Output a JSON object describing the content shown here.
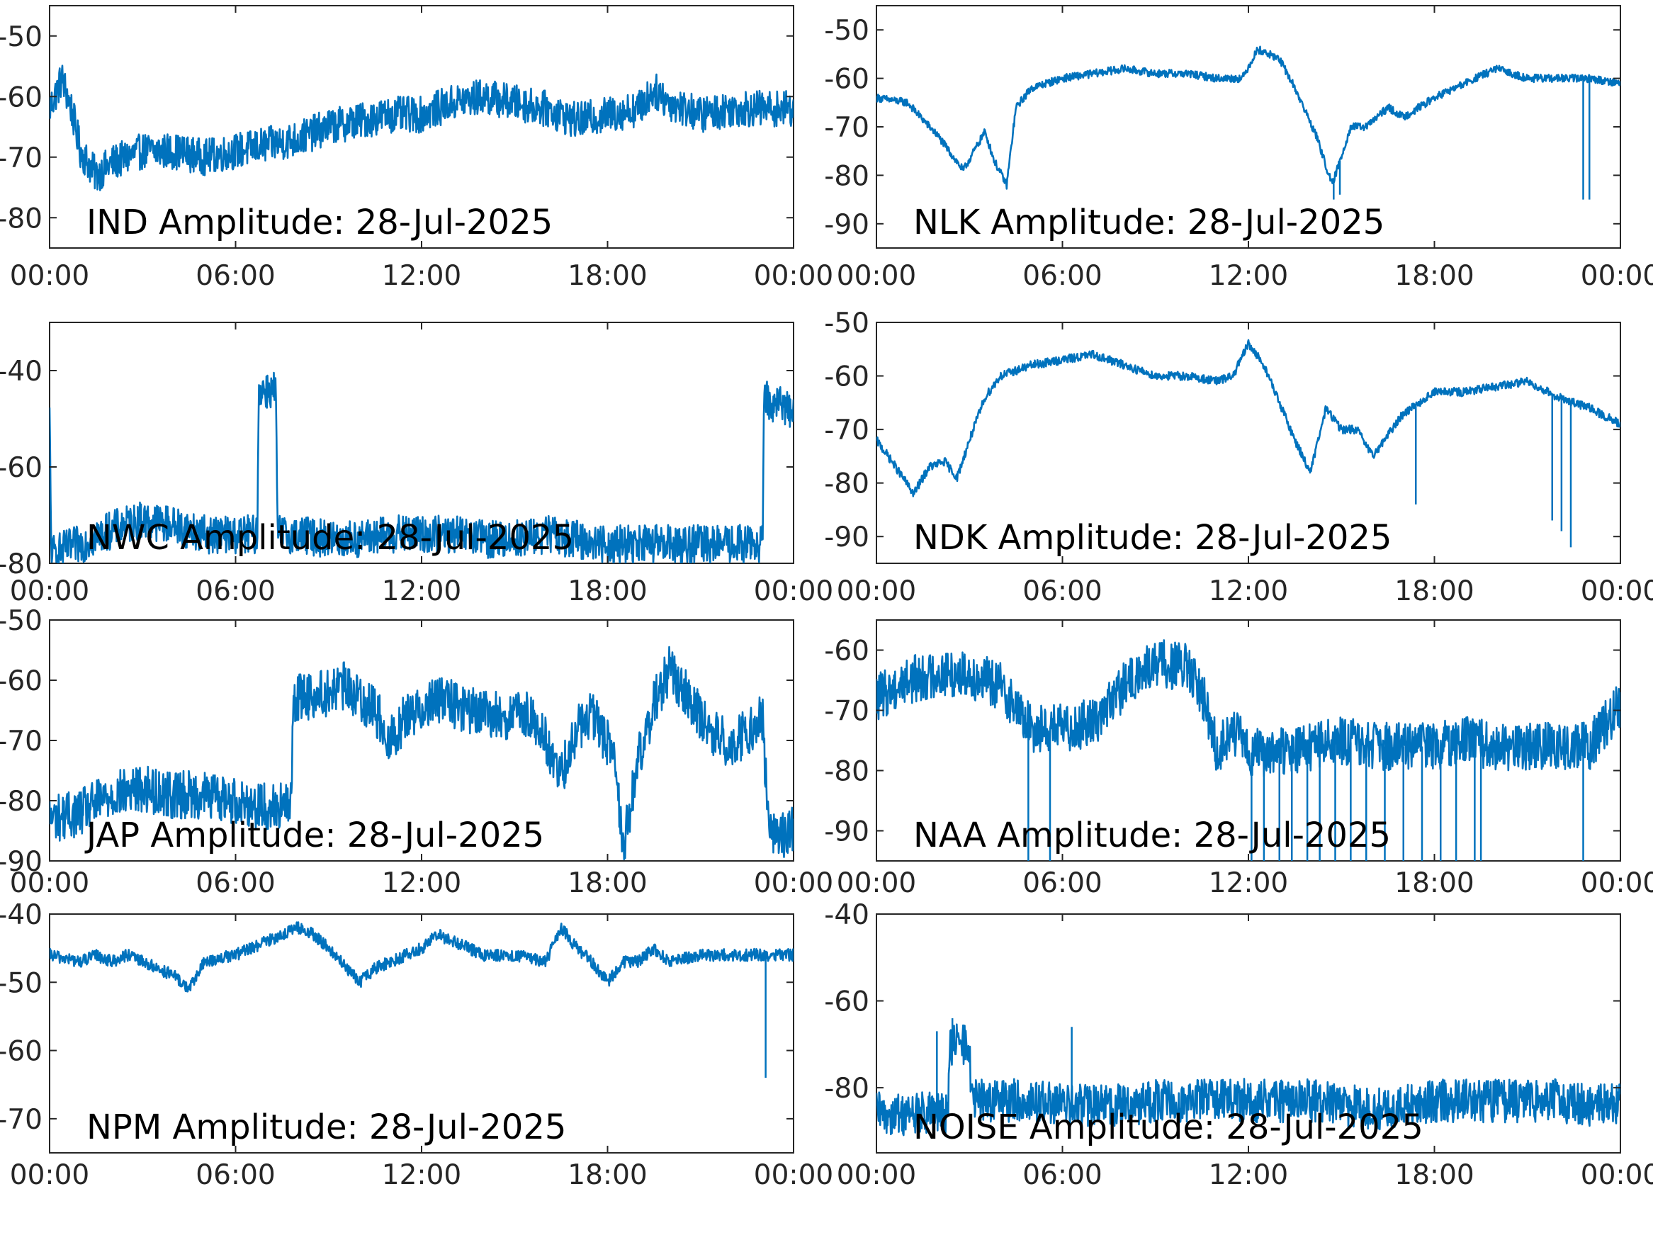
{
  "figure": {
    "series_color": "#0072BD"
  },
  "chart_data": [
    {
      "type": "line",
      "title": "IND Amplitude: 28-Jul-2025",
      "xlabel": "",
      "ylabel": "",
      "xlim": [
        0,
        24
      ],
      "ylim": [
        -85,
        -45
      ],
      "x_tick_labels": [
        "00:00",
        "06:00",
        "12:00",
        "18:00",
        "00:00"
      ],
      "y_ticks": [
        -50,
        -60,
        -70,
        -80
      ],
      "y_tick_labels": [
        "-50",
        "-60",
        "-70",
        "-80"
      ],
      "series": [
        {
          "noise": 3.0,
          "x": [
            0,
            0.4,
            0.7,
            1.0,
            1.5,
            2.0,
            3,
            4,
            5,
            6,
            7,
            8,
            9,
            10,
            11,
            12,
            13,
            14,
            15,
            16,
            17,
            18,
            19,
            19.5,
            20,
            21,
            22,
            23,
            24
          ],
          "y": [
            -62,
            -57,
            -62,
            -69,
            -73,
            -71,
            -69,
            -69,
            -70,
            -69,
            -68,
            -67,
            -65,
            -64,
            -63,
            -63,
            -61,
            -60,
            -61,
            -62,
            -64,
            -63,
            -62,
            -59,
            -61,
            -63,
            -62,
            -62,
            -62
          ]
        }
      ]
    },
    {
      "type": "line",
      "title": "NLK Amplitude: 28-Jul-2025",
      "xlabel": "",
      "ylabel": "",
      "xlim": [
        0,
        24
      ],
      "ylim": [
        -95,
        -45
      ],
      "x_tick_labels": [
        "00:00",
        "06:00",
        "12:00",
        "18:00",
        "00:00"
      ],
      "y_ticks": [
        -50,
        -60,
        -70,
        -80,
        -90
      ],
      "y_tick_labels": [
        "-50",
        "-60",
        "-70",
        "-80",
        "-90"
      ],
      "series": [
        {
          "noise": 0.8,
          "x": [
            0,
            1,
            2,
            2.8,
            3.5,
            3.8,
            4.2,
            4.5,
            5.0,
            6,
            7,
            8,
            9,
            10,
            11,
            11.8,
            12.3,
            13,
            13.5,
            14.2,
            14.7,
            15.3,
            15.8,
            16.5,
            17,
            18,
            19,
            20,
            21,
            22,
            23,
            24
          ],
          "y": [
            -64,
            -65,
            -72,
            -79,
            -71,
            -77,
            -82,
            -66,
            -62,
            -60,
            -59,
            -58,
            -59,
            -59,
            -60,
            -60,
            -54,
            -56,
            -62,
            -72,
            -82,
            -70,
            -70,
            -66,
            -68,
            -64,
            -61,
            -58,
            -60,
            -60,
            -60,
            -61
          ],
          "spikes": [
            [
              14.75,
              -85
            ],
            [
              14.95,
              -84
            ],
            [
              22.8,
              -85
            ],
            [
              23.0,
              -85
            ]
          ]
        }
      ]
    },
    {
      "type": "line",
      "title": "NWC Amplitude: 28-Jul-2025",
      "xlabel": "",
      "ylabel": "",
      "xlim": [
        0,
        24
      ],
      "ylim": [
        -80,
        -30
      ],
      "x_tick_labels": [
        "00:00",
        "06:00",
        "12:00",
        "18:00",
        "00:00"
      ],
      "y_ticks": [
        -40,
        -60,
        -80
      ],
      "y_tick_labels": [
        "-40",
        "-60",
        "-80"
      ],
      "series": [
        {
          "noise": 4.0,
          "x": [
            0,
            0.05,
            0.1,
            1,
            2,
            3,
            4,
            5,
            6,
            6.7,
            6.75,
            7.3,
            7.35,
            8,
            9,
            10,
            11,
            12,
            13,
            14,
            15,
            16,
            17,
            18,
            19,
            20,
            21,
            22,
            23.0,
            23.05,
            23.5,
            24
          ],
          "y": [
            -50,
            -76,
            -78,
            -76,
            -73,
            -71,
            -72,
            -74,
            -74,
            -74,
            -44,
            -44,
            -74,
            -74,
            -75,
            -75,
            -74,
            -74,
            -74,
            -75,
            -75,
            -74,
            -75,
            -76,
            -76,
            -76,
            -76,
            -76,
            -76,
            -46,
            -47,
            -48
          ]
        }
      ]
    },
    {
      "type": "line",
      "title": "NDK Amplitude: 28-Jul-2025",
      "xlabel": "",
      "ylabel": "",
      "xlim": [
        0,
        24
      ],
      "ylim": [
        -95,
        -50
      ],
      "x_tick_labels": [
        "00:00",
        "06:00",
        "12:00",
        "18:00",
        "00:00"
      ],
      "y_ticks": [
        -50,
        -60,
        -70,
        -80,
        -90
      ],
      "y_tick_labels": [
        "-50",
        "-60",
        "-70",
        "-80",
        "-90"
      ],
      "series": [
        {
          "noise": 0.8,
          "x": [
            0,
            0.5,
            1.2,
            1.7,
            2.2,
            2.6,
            3.0,
            3.5,
            4.0,
            5,
            6,
            7,
            8,
            9,
            10,
            11,
            11.5,
            12,
            12.5,
            13,
            13.5,
            14,
            14.5,
            15,
            15.5,
            16,
            17,
            18,
            19,
            20,
            21,
            22,
            23,
            24
          ],
          "y": [
            -72,
            -76,
            -82,
            -77,
            -76,
            -79,
            -72,
            -64,
            -60,
            -58,
            -57,
            -56,
            -58,
            -60,
            -60,
            -61,
            -60,
            -54,
            -58,
            -65,
            -72,
            -78,
            -66,
            -70,
            -70,
            -75,
            -67,
            -63,
            -63,
            -62,
            -61,
            -64,
            -66,
            -69
          ],
          "spikes": [
            [
              17.4,
              -84
            ],
            [
              21.8,
              -87
            ],
            [
              22.1,
              -89
            ],
            [
              22.4,
              -92
            ]
          ]
        }
      ]
    },
    {
      "type": "line",
      "title": "JAP Amplitude: 28-Jul-2025",
      "xlabel": "",
      "ylabel": "",
      "xlim": [
        0,
        24
      ],
      "ylim": [
        -90,
        -50
      ],
      "x_tick_labels": [
        "00:00",
        "06:00",
        "12:00",
        "18:00",
        "00:00"
      ],
      "y_ticks": [
        -50,
        -60,
        -70,
        -80,
        -90
      ],
      "y_tick_labels": [
        "-50",
        "-60",
        "-70",
        "-80",
        "-90"
      ],
      "series": [
        {
          "noise": 4.0,
          "x": [
            0,
            1,
            2,
            3,
            4,
            5,
            6,
            7,
            7.8,
            7.85,
            9,
            9.5,
            10.5,
            11,
            11.5,
            12.5,
            13.5,
            14.5,
            15.5,
            16,
            16.5,
            17,
            17.5,
            18.2,
            18.5,
            19,
            19.5,
            20,
            20.5,
            21.2,
            22,
            23,
            23.2,
            24
          ],
          "y": [
            -83,
            -82,
            -79,
            -78,
            -79,
            -79,
            -80,
            -81,
            -81,
            -63,
            -62,
            -61,
            -65,
            -70,
            -66,
            -63,
            -65,
            -66,
            -66,
            -70,
            -76,
            -68,
            -66,
            -72,
            -88,
            -73,
            -64,
            -58,
            -62,
            -68,
            -71,
            -66,
            -86,
            -85
          ]
        }
      ]
    },
    {
      "type": "line",
      "title": "NAA Amplitude: 28-Jul-2025",
      "xlabel": "",
      "ylabel": "",
      "xlim": [
        0,
        24
      ],
      "ylim": [
        -95,
        -55
      ],
      "x_tick_labels": [
        "00:00",
        "06:00",
        "12:00",
        "18:00",
        "00:00"
      ],
      "y_ticks": [
        -60,
        -70,
        -80,
        -90
      ],
      "y_tick_labels": [
        "-60",
        "-70",
        "-80",
        "-90"
      ],
      "series": [
        {
          "noise": 4.0,
          "x": [
            0,
            1,
            2,
            3,
            4,
            5,
            6,
            7,
            8,
            9,
            10,
            10.5,
            11,
            11.5,
            12,
            13,
            14,
            15,
            16,
            17,
            18,
            19,
            20,
            21,
            22,
            23,
            24
          ],
          "y": [
            -68,
            -65,
            -64,
            -64,
            -66,
            -73,
            -73,
            -72,
            -66,
            -62,
            -63,
            -67,
            -77,
            -73,
            -77,
            -77,
            -76,
            -75,
            -76,
            -76,
            -76,
            -75,
            -76,
            -76,
            -76,
            -76,
            -69
          ],
          "spikes": [
            [
              4.9,
              -95
            ],
            [
              5.6,
              -95
            ],
            [
              12.1,
              -95
            ],
            [
              12.5,
              -95
            ],
            [
              13.0,
              -95
            ],
            [
              13.4,
              -95
            ],
            [
              13.9,
              -95
            ],
            [
              14.3,
              -95
            ],
            [
              14.8,
              -95
            ],
            [
              15.3,
              -95
            ],
            [
              15.8,
              -95
            ],
            [
              16.4,
              -95
            ],
            [
              17.0,
              -95
            ],
            [
              17.6,
              -95
            ],
            [
              18.2,
              -95
            ],
            [
              18.7,
              -95
            ],
            [
              19.3,
              -95
            ],
            [
              19.5,
              -95
            ],
            [
              22.8,
              -95
            ]
          ]
        }
      ]
    },
    {
      "type": "line",
      "title": "NPM Amplitude: 28-Jul-2025",
      "xlabel": "",
      "ylabel": "",
      "xlim": [
        0,
        24
      ],
      "ylim": [
        -75,
        -40
      ],
      "x_tick_labels": [
        "00:00",
        "06:00",
        "12:00",
        "18:00",
        "00:00"
      ],
      "y_ticks": [
        -40,
        -50,
        -60,
        -70
      ],
      "y_tick_labels": [
        "-40",
        "-50",
        "-60",
        "-70"
      ],
      "series": [
        {
          "noise": 0.9,
          "x": [
            0,
            1,
            1.5,
            2,
            2.5,
            3,
            3.5,
            4,
            4.5,
            5,
            6,
            7,
            8,
            8.5,
            9,
            10,
            10.5,
            11,
            12,
            12.5,
            13,
            14,
            15,
            16,
            16.5,
            17,
            17.5,
            18,
            18.5,
            19,
            19.5,
            20,
            21,
            22,
            22.5,
            23,
            24
          ],
          "y": [
            -46,
            -47,
            -46,
            -47,
            -46,
            -47,
            -48,
            -49,
            -51,
            -47,
            -46,
            -44,
            -42,
            -43,
            -45,
            -50,
            -48,
            -47,
            -45,
            -43,
            -44,
            -46,
            -46,
            -47,
            -42,
            -45,
            -47,
            -50,
            -47,
            -47,
            -45,
            -47,
            -46,
            -46,
            -46,
            -46,
            -46
          ],
          "spikes": [
            [
              23.1,
              -64
            ]
          ]
        }
      ]
    },
    {
      "type": "line",
      "title": "NOISE Amplitude: 28-Jul-2025",
      "xlabel": "",
      "ylabel": "",
      "xlim": [
        0,
        24
      ],
      "ylim": [
        -95,
        -40
      ],
      "x_tick_labels": [
        "00:00",
        "06:00",
        "12:00",
        "18:00",
        "00:00"
      ],
      "y_ticks": [
        -40,
        -60,
        -80
      ],
      "y_tick_labels": [
        "-40",
        "-60",
        "-80"
      ],
      "series": [
        {
          "noise": 5.0,
          "x": [
            0,
            1,
            2,
            2.3,
            2.35,
            3.0,
            3.05,
            4,
            5,
            6,
            7,
            8,
            9,
            10,
            11,
            12,
            13,
            14,
            15,
            16,
            17,
            18,
            19,
            20,
            21,
            22,
            23,
            24
          ],
          "y": [
            -86,
            -86,
            -86,
            -86,
            -70,
            -70,
            -83,
            -83,
            -83,
            -84,
            -84,
            -84,
            -83,
            -83,
            -82,
            -83,
            -83,
            -83,
            -84,
            -85,
            -84,
            -83,
            -83,
            -83,
            -83,
            -83,
            -84,
            -84
          ],
          "spikes": [
            [
              1.95,
              -67
            ],
            [
              2.45,
              -64
            ],
            [
              6.3,
              -66
            ]
          ]
        }
      ]
    }
  ]
}
